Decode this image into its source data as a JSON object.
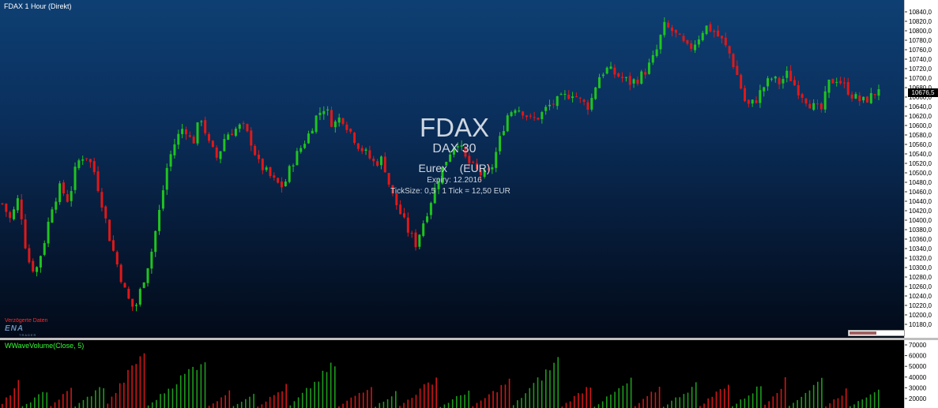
{
  "chart_title": "FDAX 1 Hour (Direkt)",
  "watermark": {
    "symbol": "FDAX",
    "index": "DAX 30",
    "exchange": "Eurex    (EUR)",
    "expiry": "Expiry: 12.2016",
    "tick": "TickSize: 0,5   1 Tick = 12,50 EUR"
  },
  "delayed_label": "Verzögerte Daten",
  "logo_text": "ENA",
  "logo_sub": "TRADER",
  "volume_title": "WWaveVolume(Close, 5)",
  "current_price_label": "10676,5",
  "colors": {
    "up": "#1fc41f",
    "down": "#e01818",
    "volume_up": "#1d9b1d",
    "volume_down": "#d01616"
  },
  "chart_data": [
    {
      "type": "candlestick",
      "title": "FDAX 1 Hour (Direkt)",
      "ylim": [
        10160,
        10860
      ],
      "y_ticks": [
        10180,
        10200,
        10220,
        10240,
        10260,
        10280,
        10300,
        10320,
        10340,
        10360,
        10380,
        10400,
        10420,
        10440,
        10460,
        10480,
        10500,
        10520,
        10540,
        10560,
        10580,
        10600,
        10620,
        10640,
        10660,
        10680,
        10700,
        10720,
        10740,
        10760,
        10780,
        10800,
        10820,
        10840
      ],
      "y_tick_labels": [
        "10180,0",
        "10200,0",
        "10220,0",
        "10240,0",
        "10260,0",
        "10280,0",
        "10300,0",
        "10320,0",
        "10340,0",
        "10360,0",
        "10380,0",
        "10400,0",
        "10420,0",
        "10440,0",
        "10460,0",
        "10480,0",
        "10500,0",
        "10520,0",
        "10540,0",
        "10560,0",
        "10580,0",
        "10600,0",
        "10620,0",
        "10640,0",
        "10660,0",
        "10680,0",
        "10700,0",
        "10720,0",
        "10740,0",
        "10760,0",
        "10780,0",
        "10800,0",
        "10820,0",
        "10840,0"
      ],
      "close_path": [
        10435,
        10400,
        10450,
        10320,
        10290,
        10350,
        10430,
        10470,
        10440,
        10520,
        10540,
        10510,
        10440,
        10360,
        10300,
        10240,
        10210,
        10270,
        10330,
        10420,
        10520,
        10570,
        10600,
        10560,
        10620,
        10560,
        10530,
        10580,
        10590,
        10600,
        10570,
        10520,
        10500,
        10480,
        10470,
        10520,
        10550,
        10580,
        10620,
        10640,
        10600,
        10620,
        10590,
        10560,
        10540,
        10520,
        10530,
        10460,
        10420,
        10380,
        10350,
        10400,
        10450,
        10500,
        10540,
        10570,
        10530,
        10510,
        10495,
        10500,
        10560,
        10620,
        10640,
        10630,
        10610,
        10620,
        10640,
        10650,
        10660,
        10670,
        10650,
        10640,
        10700,
        10720,
        10710,
        10700,
        10690,
        10700,
        10720,
        10750,
        10810,
        10800,
        10780,
        10760,
        10780,
        10810,
        10800,
        10780,
        10750,
        10700,
        10640,
        10650,
        10680,
        10700,
        10690,
        10710,
        10680,
        10660,
        10640,
        10630,
        10690,
        10700,
        10680,
        10660,
        10650,
        10660,
        10676.5
      ],
      "current_price": 10676.5
    },
    {
      "type": "bar",
      "title": "WWaveVolume(Close, 5)",
      "ylim": [
        10000,
        75000
      ],
      "y_ticks": [
        20000,
        30000,
        40000,
        50000,
        60000,
        70000
      ],
      "y_tick_labels": [
        "20000",
        "30000",
        "40000",
        "50000",
        "60000",
        "70000"
      ],
      "waves": [
        {
          "dir": "down",
          "len": 5,
          "peak": 38000
        },
        {
          "dir": "up",
          "len": 7,
          "peak": 30000
        },
        {
          "dir": "down",
          "len": 6,
          "peak": 32000
        },
        {
          "dir": "up",
          "len": 8,
          "peak": 35000
        },
        {
          "dir": "down",
          "len": 10,
          "peak": 72000
        },
        {
          "dir": "up",
          "len": 15,
          "peak": 65000
        },
        {
          "dir": "down",
          "len": 6,
          "peak": 30000
        },
        {
          "dir": "up",
          "len": 6,
          "peak": 28000
        },
        {
          "dir": "down",
          "len": 8,
          "peak": 34000
        },
        {
          "dir": "up",
          "len": 12,
          "peak": 58000
        },
        {
          "dir": "down",
          "len": 9,
          "peak": 36000
        },
        {
          "dir": "up",
          "len": 6,
          "peak": 28000
        },
        {
          "dir": "down",
          "len": 10,
          "peak": 44000
        },
        {
          "dir": "up",
          "len": 8,
          "peak": 30000
        },
        {
          "dir": "down",
          "len": 10,
          "peak": 40000
        },
        {
          "dir": "up",
          "len": 12,
          "peak": 62000
        },
        {
          "dir": "down",
          "len": 8,
          "peak": 36000
        },
        {
          "dir": "up",
          "len": 10,
          "peak": 40000
        },
        {
          "dir": "down",
          "len": 7,
          "peak": 33000
        },
        {
          "dir": "up",
          "len": 9,
          "peak": 36000
        },
        {
          "dir": "down",
          "len": 8,
          "peak": 38000
        },
        {
          "dir": "up",
          "len": 8,
          "peak": 35000
        },
        {
          "dir": "down",
          "len": 6,
          "peak": 40000
        },
        {
          "dir": "up",
          "len": 9,
          "peak": 42000
        },
        {
          "dir": "down",
          "len": 6,
          "peak": 30000
        },
        {
          "dir": "up",
          "len": 8,
          "peak": 33000
        }
      ]
    }
  ]
}
